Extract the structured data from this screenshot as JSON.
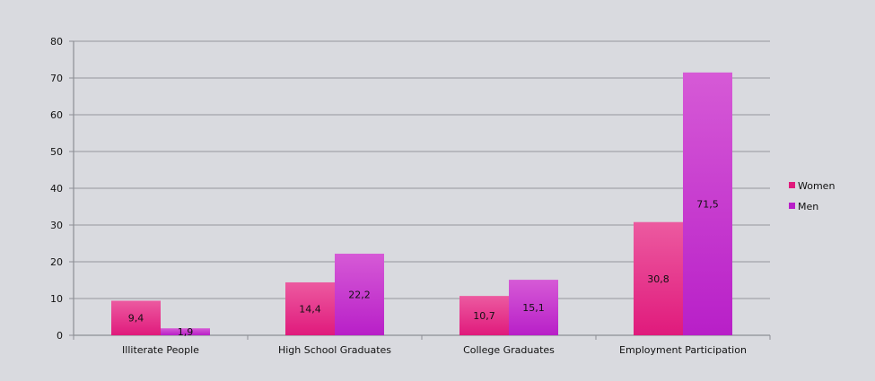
{
  "chart_data": {
    "type": "bar",
    "categories": [
      "Illiterate People",
      "High School Graduates",
      "College Graduates",
      "Employment Participation"
    ],
    "series": [
      {
        "name": "Women",
        "values": [
          9.4,
          14.4,
          10.7,
          30.8
        ],
        "labels": [
          "9,4",
          "14,4",
          "10,7",
          "30,8"
        ],
        "color_top": "#ec5aa0",
        "color_bottom": "#e01a7c"
      },
      {
        "name": "Men",
        "values": [
          1.9,
          22.2,
          15.1,
          71.5
        ],
        "labels": [
          "1,9",
          "22,2",
          "15,1",
          "71,5"
        ],
        "color_top": "#d65ad6",
        "color_bottom": "#b81fc8"
      }
    ],
    "yticks": [
      "0",
      "10",
      "20",
      "30",
      "40",
      "50",
      "60",
      "70",
      "80"
    ],
    "ylim": [
      0,
      80
    ],
    "grid": true,
    "legend_position": "right"
  }
}
